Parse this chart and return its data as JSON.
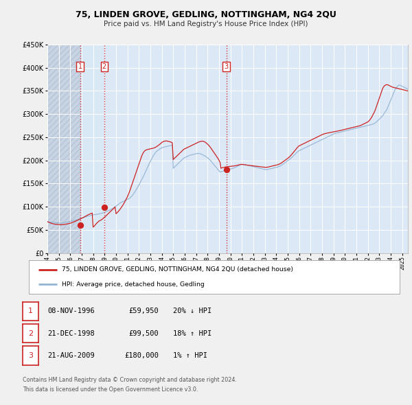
{
  "title": "75, LINDEN GROVE, GEDLING, NOTTINGHAM, NG4 2QU",
  "subtitle": "Price paid vs. HM Land Registry's House Price Index (HPI)",
  "fig_bg": "#f0f0f0",
  "chart_bg": "#dce8f5",
  "hpi_color": "#92b4d4",
  "price_color": "#cc2222",
  "vline_color_12": "#cc2222",
  "vline_color_3": "#cc2222",
  "span_color": "#c8d8f0",
  "ylim": [
    0,
    450000
  ],
  "yticks": [
    0,
    50000,
    100000,
    150000,
    200000,
    250000,
    300000,
    350000,
    400000,
    450000
  ],
  "xlim_start": 1994.0,
  "xlim_end": 2025.5,
  "xticks": [
    1994,
    1995,
    1996,
    1997,
    1998,
    1999,
    2000,
    2001,
    2002,
    2003,
    2004,
    2005,
    2006,
    2007,
    2008,
    2009,
    2010,
    2011,
    2012,
    2013,
    2014,
    2015,
    2016,
    2017,
    2018,
    2019,
    2020,
    2021,
    2022,
    2023,
    2024,
    2025
  ],
  "sales": [
    {
      "num": 1,
      "date": "08-NOV-1996",
      "year": 1996.86,
      "price": 59950,
      "hpi_diff": "20% ↓ HPI"
    },
    {
      "num": 2,
      "date": "21-DEC-1998",
      "year": 1998.97,
      "price": 99500,
      "hpi_diff": "18% ↑ HPI"
    },
    {
      "num": 3,
      "date": "21-AUG-2009",
      "year": 2009.64,
      "price": 180000,
      "hpi_diff": "1% ↑ HPI"
    }
  ],
  "legend_label_price": "75, LINDEN GROVE, GEDLING, NOTTINGHAM, NG4 2QU (detached house)",
  "legend_label_hpi": "HPI: Average price, detached house, Gedling",
  "footer_line1": "Contains HM Land Registry data © Crown copyright and database right 2024.",
  "footer_line2": "This data is licensed under the Open Government Licence v3.0.",
  "hpi_monthly": {
    "start_year": 1994.0,
    "step": 0.08333,
    "values": [
      68000,
      67500,
      67200,
      67000,
      66800,
      66500,
      66200,
      66000,
      65800,
      65500,
      65200,
      65000,
      64800,
      64600,
      64500,
      64700,
      65000,
      65300,
      65700,
      66100,
      66500,
      67000,
      67500,
      68000,
      68500,
      69000,
      69500,
      70000,
      70500,
      71000,
      71500,
      72000,
      72500,
      73000,
      73800,
      74500,
      75200,
      76000,
      76800,
      77500,
      78200,
      79000,
      79500,
      80000,
      80500,
      81000,
      81500,
      82000,
      82500,
      83000,
      83200,
      83500,
      83800,
      84000,
      84500,
      85000,
      85500,
      86000,
      86800,
      87500,
      88200,
      89000,
      89800,
      90500,
      91500,
      92500,
      93500,
      94800,
      96000,
      97200,
      98500,
      100000,
      101500,
      103000,
      104500,
      106000,
      107500,
      109000,
      110000,
      111000,
      112000,
      113000,
      114000,
      115000,
      116000,
      117000,
      118000,
      120000,
      122000,
      124000,
      127000,
      130000,
      133000,
      136500,
      140000,
      143500,
      147000,
      151000,
      155000,
      159000,
      163000,
      167000,
      171500,
      176000,
      180500,
      185000,
      189500,
      194000,
      198000,
      202000,
      206000,
      210000,
      213000,
      216000,
      218500,
      220500,
      222000,
      223500,
      225000,
      226000,
      227000,
      228000,
      228500,
      229000,
      229500,
      230000,
      230500,
      231000,
      231500,
      232000,
      232500,
      233000,
      183000,
      185000,
      187000,
      189000,
      191000,
      193000,
      195000,
      197000,
      199000,
      201000,
      203000,
      205000,
      206000,
      207000,
      208000,
      209000,
      210000,
      211000,
      211500,
      212000,
      212500,
      213000,
      213500,
      214000,
      214500,
      215000,
      215200,
      215000,
      214500,
      214000,
      213000,
      212000,
      211000,
      210000,
      208500,
      207000,
      205500,
      204000,
      202000,
      200000,
      197500,
      195000,
      192500,
      190000,
      187500,
      185000,
      182500,
      180000,
      177500,
      175000,
      175500,
      176000,
      176800,
      177500,
      178200,
      179000,
      179500,
      180000,
      180500,
      181000,
      181500,
      182000,
      182800,
      183500,
      184200,
      185000,
      186000,
      187000,
      188000,
      189000,
      190000,
      191000,
      191200,
      191500,
      191200,
      191000,
      190500,
      190000,
      189500,
      189000,
      188500,
      188000,
      187500,
      187000,
      186500,
      186000,
      185500,
      185000,
      184500,
      184000,
      183500,
      183000,
      182500,
      182000,
      181500,
      181000,
      180500,
      180000,
      180200,
      180500,
      181000,
      181500,
      182000,
      182500,
      183000,
      183500,
      184000,
      184500,
      185000,
      185500,
      186000,
      187000,
      188000,
      189000,
      190500,
      192000,
      193500,
      195000,
      196500,
      198000,
      199500,
      201000,
      202500,
      204000,
      206000,
      208000,
      210000,
      212000,
      214000,
      216000,
      218000,
      220000,
      221000,
      222000,
      223000,
      224000,
      225000,
      226000,
      227000,
      228000,
      229000,
      230000,
      231000,
      232000,
      233000,
      234000,
      235000,
      236000,
      237000,
      238000,
      239000,
      240000,
      241000,
      242000,
      243000,
      244000,
      245000,
      246000,
      247000,
      248000,
      249000,
      250000,
      251000,
      252000,
      253000,
      254000,
      255000,
      256000,
      257000,
      258000,
      258500,
      259000,
      259500,
      260000,
      260500,
      261000,
      261500,
      262000,
      262500,
      263000,
      263500,
      264000,
      264500,
      265000,
      265500,
      266000,
      266500,
      267000,
      267500,
      268000,
      268500,
      269000,
      269500,
      270000,
      270500,
      271000,
      271500,
      272000,
      272500,
      273000,
      273500,
      274000,
      274500,
      275000,
      275500,
      276000,
      276500,
      277000,
      277500,
      278000,
      279000,
      280000,
      281000,
      283000,
      285000,
      287000,
      289000,
      291000,
      293000,
      295000,
      298000,
      301000,
      304000,
      307000,
      310000,
      315000,
      320000,
      325000,
      330000,
      335000,
      340000,
      345000,
      350000,
      354000,
      357000,
      360000,
      362000,
      362500,
      362000,
      361000,
      360000,
      359000,
      358000,
      357000,
      356000,
      355000,
      354000,
      353000,
      352000,
      351000,
      350000,
      349500,
      349000,
      348500,
      348000,
      347500,
      347000,
      346500,
      346000,
      345500,
      345000,
      344500,
      344000,
      343500
    ]
  },
  "price_monthly": {
    "start_year": 1994.0,
    "step": 0.08333,
    "values": [
      68000,
      67000,
      66000,
      65200,
      64500,
      63800,
      63200,
      62800,
      62500,
      62200,
      62000,
      61800,
      61500,
      61300,
      61200,
      61300,
      61500,
      61700,
      62000,
      62300,
      62700,
      63100,
      63500,
      64000,
      64500,
      65200,
      66000,
      66800,
      67700,
      68600,
      69500,
      70400,
      71400,
      72300,
      73200,
      74200,
      75200,
      76300,
      77300,
      78400,
      79600,
      80800,
      81900,
      83000,
      83900,
      84800,
      85700,
      86500,
      56000,
      58000,
      60500,
      63000,
      65000,
      67000,
      69000,
      70000,
      71000,
      72500,
      74000,
      75800,
      77600,
      79500,
      81500,
      83500,
      85500,
      87500,
      89500,
      91500,
      93500,
      95500,
      97500,
      99500,
      85000,
      87000,
      89000,
      91500,
      94000,
      97000,
      100000,
      103000,
      106500,
      110000,
      114000,
      118000,
      122000,
      127000,
      132000,
      138000,
      144000,
      150000,
      156000,
      162000,
      168000,
      174000,
      180000,
      186000,
      192000,
      198000,
      204500,
      210000,
      214500,
      218000,
      220500,
      222000,
      223000,
      223500,
      224000,
      224500,
      225000,
      225500,
      226000,
      226500,
      227000,
      228000,
      229000,
      230500,
      232000,
      233500,
      235000,
      237000,
      238500,
      240000,
      241000,
      241500,
      242000,
      242000,
      241500,
      241000,
      240500,
      240000,
      239000,
      238000,
      202000,
      204000,
      206000,
      208000,
      210000,
      212000,
      214000,
      216000,
      218000,
      220000,
      222000,
      224000,
      225000,
      226000,
      227000,
      228000,
      229000,
      230000,
      231000,
      232000,
      233000,
      234000,
      235000,
      236000,
      237000,
      238000,
      239000,
      240000,
      240500,
      241000,
      241500,
      241500,
      241000,
      240000,
      238500,
      237000,
      235000,
      233000,
      230500,
      228000,
      225000,
      222000,
      219000,
      216000,
      213000,
      210000,
      207000,
      204000,
      200000,
      196000,
      183000,
      184000,
      184500,
      185000,
      185500,
      186000,
      186200,
      186500,
      186800,
      187000,
      187200,
      187500,
      187800,
      188000,
      188200,
      188500,
      189000,
      189500,
      190000,
      190500,
      191000,
      191500,
      191500,
      191200,
      190800,
      190500,
      190200,
      190000,
      189700,
      189500,
      189200,
      189000,
      188700,
      188500,
      188200,
      188000,
      187700,
      187500,
      187200,
      187000,
      186700,
      186500,
      186200,
      186000,
      185700,
      185500,
      185200,
      185000,
      185200,
      185500,
      186000,
      186500,
      187000,
      187500,
      188000,
      188500,
      189000,
      189500,
      190000,
      190500,
      191000,
      192000,
      193000,
      194000,
      195500,
      197000,
      198500,
      200000,
      201500,
      203000,
      204500,
      206000,
      208000,
      210000,
      212500,
      215000,
      217500,
      220000,
      222500,
      225000,
      227500,
      230000,
      231500,
      232500,
      233500,
      234500,
      235500,
      236500,
      237500,
      238500,
      239500,
      240500,
      241500,
      242500,
      243500,
      244500,
      245500,
      246500,
      247500,
      248500,
      249500,
      250500,
      251500,
      252500,
      253500,
      254500,
      255500,
      256500,
      257200,
      257800,
      258300,
      258800,
      259200,
      259600,
      260000,
      260400,
      260800,
      261200,
      261600,
      262000,
      262400,
      262800,
      263200,
      263600,
      264000,
      264500,
      265000,
      265500,
      266000,
      266500,
      267000,
      267500,
      268000,
      268500,
      269000,
      269500,
      270000,
      270500,
      271000,
      271500,
      272000,
      272500,
      273000,
      273500,
      274000,
      274500,
      275000,
      276000,
      277000,
      278000,
      279000,
      280000,
      281000,
      282000,
      283000,
      285000,
      287000,
      290000,
      293000,
      297000,
      301000,
      305000,
      310000,
      316000,
      322000,
      328000,
      334000,
      340000,
      346000,
      352000,
      357000,
      360000,
      362000,
      363000,
      363500,
      363000,
      362000,
      361000,
      360000,
      359000,
      358000,
      357500,
      357000,
      356500,
      356000,
      355500,
      355000,
      354500,
      354000,
      353500,
      353000,
      352500,
      352000,
      351500,
      351000,
      350500,
      350000,
      349500,
      349000,
      348500,
      348000,
      347500,
      347000,
      346500,
      346000,
      345500,
      345000,
      344500,
      344000,
      343500,
      343000,
      342500,
      342000,
      341500
    ]
  }
}
